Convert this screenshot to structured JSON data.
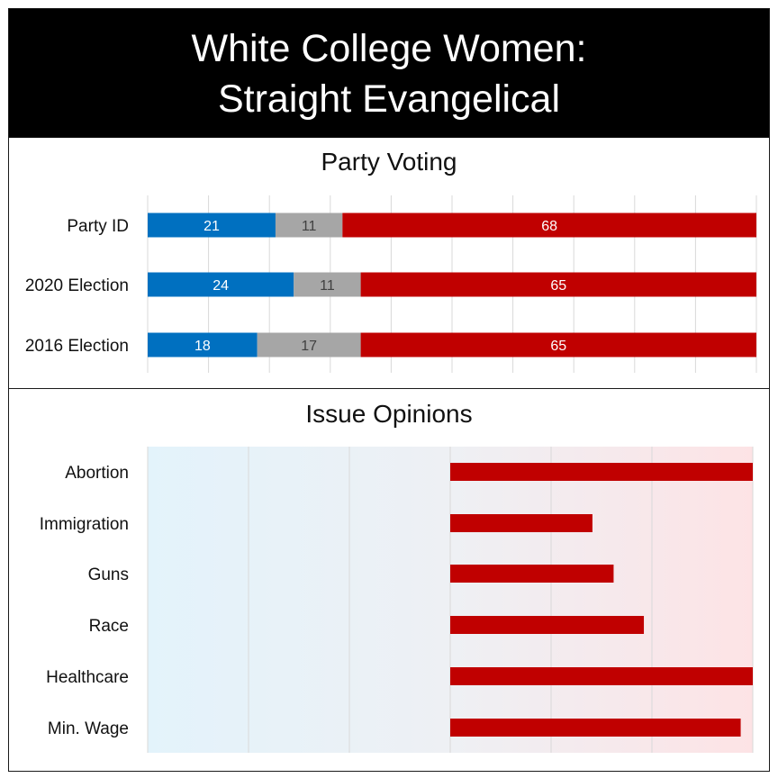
{
  "header": {
    "title_line1": "White College Women:",
    "title_line2": "Straight Evangelical"
  },
  "colors": {
    "democrat": "#0070c0",
    "other": "#a6a6a6",
    "republican": "#c00000",
    "blue_tint": "#e3f3fb",
    "red_tint": "#fde3e5",
    "grid": "#d9d9d9"
  },
  "chart_data": [
    {
      "type": "bar",
      "stacked": true,
      "orientation": "horizontal",
      "title": "Party Voting",
      "categories": [
        "Party ID",
        "2020 Election",
        "2016 Election"
      ],
      "series": [
        {
          "values": [
            21,
            24,
            18
          ],
          "color": "#0070c0"
        },
        {
          "values": [
            11,
            11,
            17
          ],
          "color": "#a6a6a6"
        },
        {
          "values": [
            68,
            65,
            65
          ],
          "color": "#c00000"
        }
      ],
      "xlim": [
        0,
        100
      ],
      "grid": true
    },
    {
      "type": "bar",
      "orientation": "horizontal",
      "title": "Issue Opinions",
      "categories": [
        "Abortion",
        "Immigration",
        "Guns",
        "Race",
        "Healthcare",
        "Min. Wage"
      ],
      "values": [
        1.0,
        0.47,
        0.54,
        0.64,
        1.0,
        0.96
      ],
      "xlim": [
        -1,
        1
      ],
      "color": "#c00000",
      "background": "gradient blue (left) to red (right)",
      "grid": true
    }
  ]
}
